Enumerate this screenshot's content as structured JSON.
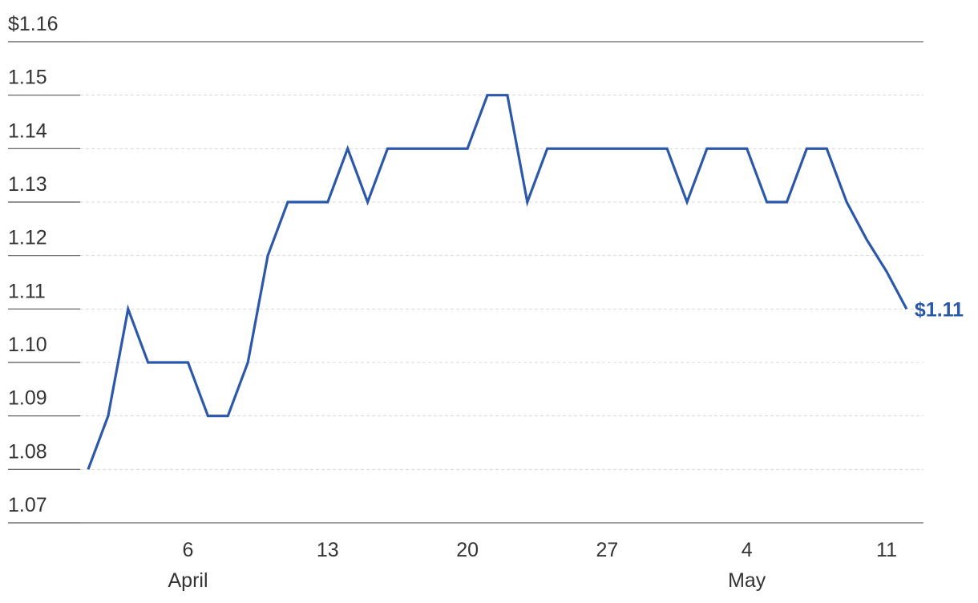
{
  "chart_data": {
    "type": "line",
    "categories": [
      null,
      null,
      null,
      null,
      null,
      "6",
      null,
      null,
      null,
      null,
      null,
      null,
      "13",
      null,
      null,
      null,
      null,
      null,
      null,
      "20",
      null,
      null,
      null,
      null,
      null,
      null,
      "27",
      null,
      null,
      null,
      null,
      null,
      null,
      "4",
      null,
      null,
      null,
      null,
      null,
      null,
      "11",
      null
    ],
    "month_labels": [
      {
        "text": "April",
        "category": 5
      },
      {
        "text": "May",
        "category": 33
      }
    ],
    "series": [
      {
        "color": "#2b58a8",
        "values": [
          1.08,
          1.09,
          1.11,
          1.1,
          1.1,
          1.1,
          1.09,
          1.09,
          1.1,
          1.12,
          1.13,
          1.13,
          1.13,
          1.14,
          1.13,
          1.14,
          1.14,
          1.14,
          1.14,
          1.14,
          1.15,
          1.15,
          1.13,
          1.14,
          1.14,
          1.14,
          1.14,
          1.14,
          1.14,
          1.14,
          1.13,
          1.14,
          1.14,
          1.14,
          1.13,
          1.13,
          1.14,
          1.14,
          1.13,
          1.123,
          1.117,
          1.11
        ],
        "last_value_label": "$1.11"
      }
    ],
    "ylim": [
      1.07,
      1.16
    ],
    "yticks": [
      1.07,
      1.08,
      1.09,
      {
        "value": 1.1,
        "label": "1.10"
      },
      1.11,
      1.12,
      1.13,
      1.14,
      1.15,
      {
        "value": 1.16,
        "label": "$1.16"
      }
    ],
    "grid": true
  }
}
